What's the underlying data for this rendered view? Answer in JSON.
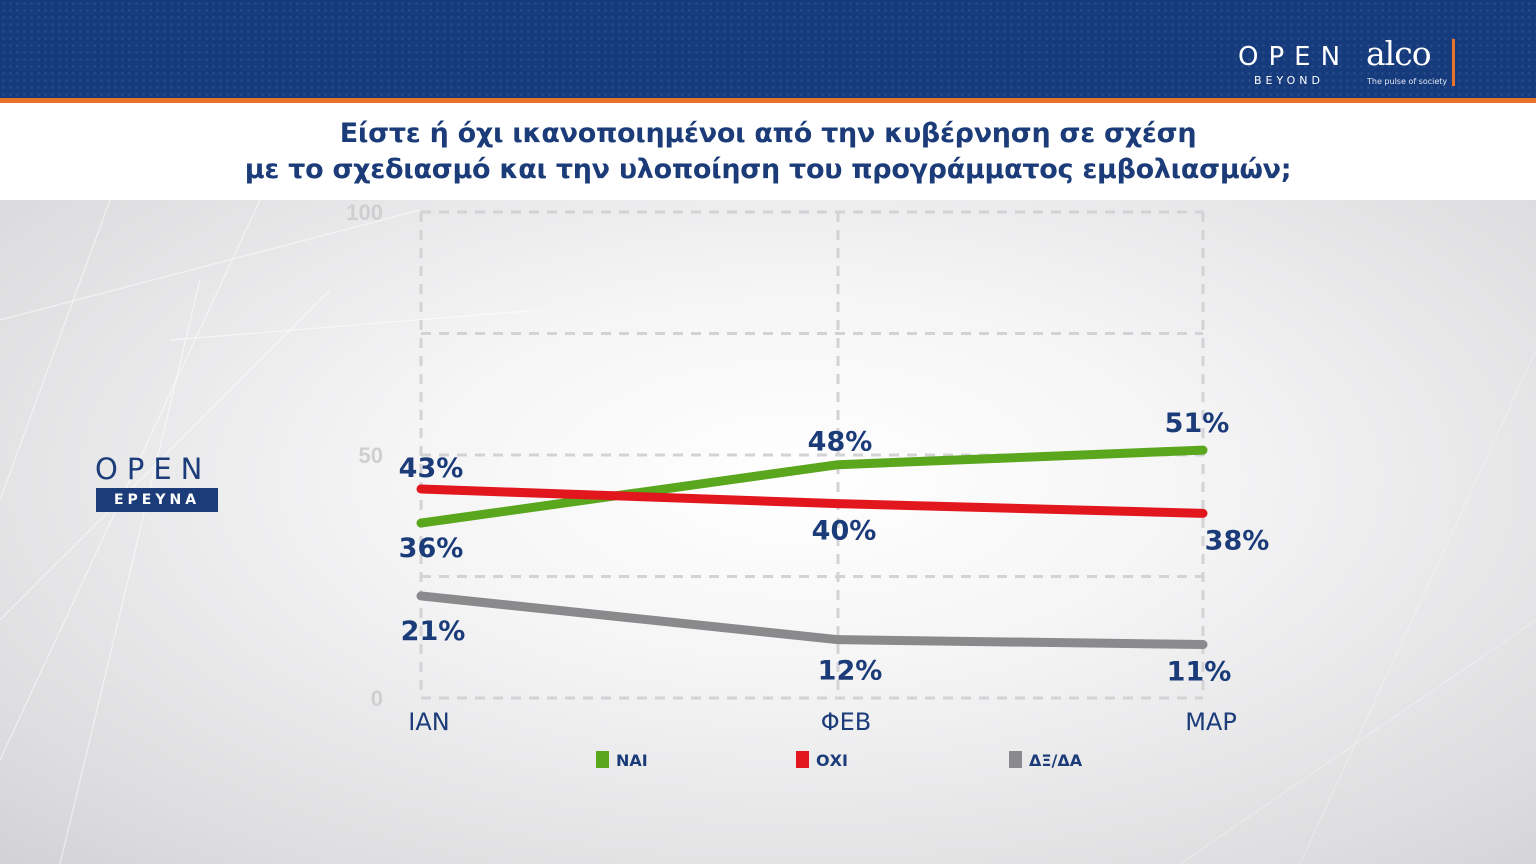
{
  "header": {
    "brand_open": "OPEN",
    "brand_beyond": "BEYOND",
    "brand_alco": "alco",
    "brand_alco_tagline": "The pulse of society"
  },
  "title": {
    "line1": "Είστε ή όχι ικανοποιημένοι από την κυβέρνηση σε σχέση",
    "line2": "με το σχεδιασμό και την υλοποίηση του προγράμματος εμβολιασμών;"
  },
  "side_logo": {
    "open": "OPEN",
    "ereyna": "ΕΡΕΥΝΑ"
  },
  "colors": {
    "header_bg": "#163b7c",
    "accent_orange": "#e8742c",
    "label_navy": "#1b3c79",
    "nai": "#5aa61d",
    "oxi": "#e2161d",
    "dxda": "#8a8a8c"
  },
  "chart_data": {
    "type": "line",
    "title": "",
    "xlabel": "",
    "ylabel": "",
    "categories": [
      "ΙΑΝ",
      "ΦΕΒ",
      "ΜΑΡ"
    ],
    "yticks": [
      "0",
      "50",
      "100"
    ],
    "ylim": [
      0,
      100
    ],
    "grid": true,
    "legend_position": "bottom",
    "series": [
      {
        "name": "ΝΑΙ",
        "color": "#5aa61d",
        "values": [
          36,
          48,
          51
        ],
        "labels": [
          "36%",
          "48%",
          "51%"
        ]
      },
      {
        "name": "ΟΧΙ",
        "color": "#e2161d",
        "values": [
          43,
          40,
          38
        ],
        "labels": [
          "43%",
          "40%",
          "38%"
        ]
      },
      {
        "name": "ΔΞ/ΔΑ",
        "color": "#8a8a8c",
        "values": [
          21,
          12,
          11
        ],
        "labels": [
          "21%",
          "12%",
          "11%"
        ]
      }
    ]
  }
}
